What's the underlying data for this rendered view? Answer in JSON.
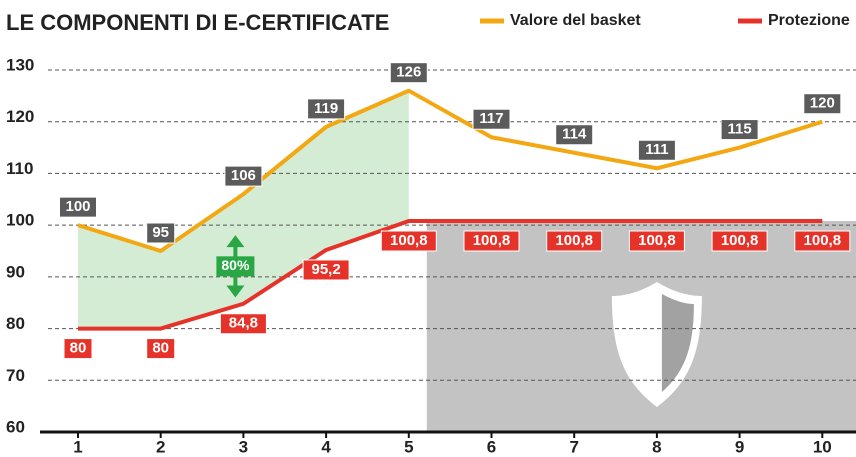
{
  "chart_data": {
    "type": "line",
    "title": "LE COMPONENTI DI E-CERTIFICATE",
    "categories": [
      "1",
      "2",
      "3",
      "4",
      "5",
      "6",
      "7",
      "8",
      "9",
      "10"
    ],
    "series": [
      {
        "name": "Valore del basket",
        "color": "#f3a712",
        "values": [
          100,
          95,
          106,
          119,
          126,
          117,
          114,
          111,
          115,
          120
        ]
      },
      {
        "name": "Protezione",
        "color": "#e5332a",
        "values": [
          80,
          80,
          84.8,
          95.2,
          100.8,
          100.8,
          100.8,
          100.8,
          100.8,
          100.8
        ],
        "value_labels": [
          "80",
          "80",
          "84,8",
          "95,2",
          "100,8",
          "100,8",
          "100,8",
          "100,8",
          "100,8",
          "100,8"
        ]
      }
    ],
    "annotation": "80%",
    "ylim": [
      60,
      130
    ],
    "yticks": [
      60,
      70,
      80,
      90,
      100,
      110,
      120,
      130
    ],
    "grid": true,
    "legend": "top-right"
  }
}
